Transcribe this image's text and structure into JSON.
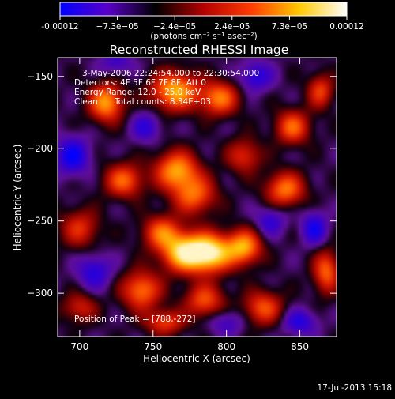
{
  "chart_data": {
    "type": "heatmap",
    "title": "Reconstructed RHESSI Image",
    "xlabel": "Heliocentric X (arcsec)",
    "ylabel": "Heliocentric Y (arcsec)",
    "xlim": [
      685,
      875
    ],
    "ylim": [
      -330,
      -137
    ],
    "x_ticks": [
      700,
      750,
      800,
      850
    ],
    "y_ticks": [
      -150,
      -200,
      -250,
      -300
    ],
    "colorbar": {
      "range": [
        -0.00012,
        0.00012
      ],
      "tick_labels": [
        "-0.00012",
        "−7.3e−05",
        "−2.4e−05",
        "2.4e−05",
        "7.3e−05",
        "0.00012"
      ],
      "unit_label": "(photons cm⁻² s⁻¹ asec⁻²)",
      "palette": [
        "#0000ff",
        "#5a00c8",
        "#000000",
        "#b40000",
        "#ff3c00",
        "#ffc800",
        "#ffffff"
      ]
    },
    "annotations": {
      "time_range": "3-May-2006 22:24:54.000 to 22:30:54.000",
      "detectors": "Detectors: 4F 5F 6F 7F 8F, Att 0",
      "energy_range": "Energy Range: 12.0 - 25.0 keV",
      "clean_label": "Clean",
      "total_counts": "Total counts: 8.34E+03",
      "peak": "Position of Peak = [788,-272]"
    },
    "peak_position": [
      788,
      -272
    ],
    "sources": [
      {
        "x": 788,
        "y": -272,
        "amp": 1.0,
        "sx": 11,
        "sy": 9
      },
      {
        "x": 770,
        "y": -272,
        "amp": 0.75,
        "sx": 10,
        "sy": 9
      },
      {
        "x": 756,
        "y": -258,
        "amp": 0.55,
        "sx": 9,
        "sy": 8
      },
      {
        "x": 812,
        "y": -268,
        "amp": 0.7,
        "sx": 8,
        "sy": 8
      },
      {
        "x": 742,
        "y": -298,
        "amp": 0.6,
        "sx": 9,
        "sy": 9
      },
      {
        "x": 778,
        "y": -232,
        "amp": 0.55,
        "sx": 10,
        "sy": 9
      },
      {
        "x": 766,
        "y": -215,
        "amp": 0.7,
        "sx": 10,
        "sy": 9
      },
      {
        "x": 765,
        "y": -160,
        "amp": 0.75,
        "sx": 11,
        "sy": 9
      },
      {
        "x": 795,
        "y": -165,
        "amp": 0.6,
        "sx": 9,
        "sy": 8
      },
      {
        "x": 718,
        "y": -168,
        "amp": 0.7,
        "sx": 8,
        "sy": 9
      },
      {
        "x": 730,
        "y": -222,
        "amp": 0.55,
        "sx": 9,
        "sy": 8
      },
      {
        "x": 840,
        "y": -228,
        "amp": 0.6,
        "sx": 9,
        "sy": 8
      },
      {
        "x": 845,
        "y": -185,
        "amp": 0.55,
        "sx": 8,
        "sy": 8
      },
      {
        "x": 864,
        "y": -160,
        "amp": 0.45,
        "sx": 6,
        "sy": 8
      },
      {
        "x": 868,
        "y": -285,
        "amp": 0.55,
        "sx": 6,
        "sy": 10
      },
      {
        "x": 825,
        "y": -310,
        "amp": 0.5,
        "sx": 9,
        "sy": 8
      },
      {
        "x": 785,
        "y": -305,
        "amp": 0.5,
        "sx": 9,
        "sy": 8
      },
      {
        "x": 700,
        "y": -255,
        "amp": 0.4,
        "sx": 9,
        "sy": 9
      },
      {
        "x": 758,
        "y": -320,
        "amp": 0.45,
        "sx": 9,
        "sy": 6
      },
      {
        "x": 700,
        "y": -310,
        "amp": 0.35,
        "sx": 8,
        "sy": 7
      },
      {
        "x": 812,
        "y": -205,
        "amp": 0.4,
        "sx": 8,
        "sy": 8
      },
      {
        "x": 745,
        "y": -185,
        "amp": -0.3,
        "sx": 7,
        "sy": 7
      },
      {
        "x": 695,
        "y": -205,
        "amp": -0.45,
        "sx": 8,
        "sy": 9
      },
      {
        "x": 820,
        "y": -150,
        "amp": -0.35,
        "sx": 8,
        "sy": 7
      },
      {
        "x": 830,
        "y": -250,
        "amp": -0.3,
        "sx": 7,
        "sy": 7
      },
      {
        "x": 860,
        "y": -255,
        "amp": -0.4,
        "sx": 6,
        "sy": 8
      },
      {
        "x": 710,
        "y": -285,
        "amp": -0.35,
        "sx": 8,
        "sy": 8
      },
      {
        "x": 800,
        "y": -320,
        "amp": -0.25,
        "sx": 8,
        "sy": 6
      },
      {
        "x": 850,
        "y": -320,
        "amp": -0.35,
        "sx": 8,
        "sy": 6
      },
      {
        "x": 725,
        "y": -140,
        "amp": -0.25,
        "sx": 8,
        "sy": 6
      }
    ]
  },
  "footer": {
    "date_stamp": "17-Jul-2013 15:18"
  }
}
